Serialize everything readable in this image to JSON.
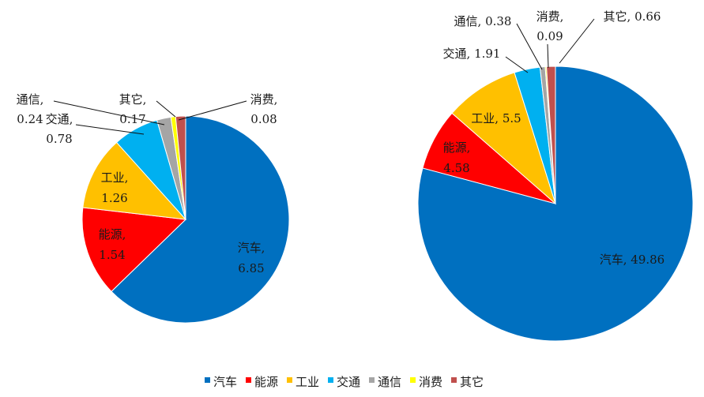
{
  "chart_data": [
    {
      "type": "pie",
      "categories": [
        "汽车",
        "能源",
        "工业",
        "交通",
        "通信",
        "消费",
        "其它"
      ],
      "values": [
        6.85,
        1.54,
        1.26,
        0.78,
        0.24,
        0.08,
        0.17
      ],
      "labels": [
        {
          "name": "汽车,",
          "value": "6.85"
        },
        {
          "name": "能源,",
          "value": "1.54"
        },
        {
          "name": "工业,",
          "value": "1.26"
        },
        {
          "name": "交通,",
          "value": "0.78"
        },
        {
          "name": "通信,",
          "value": "0.24"
        },
        {
          "name": "消费,",
          "value": "0.08"
        },
        {
          "name": "其它,",
          "value": "0.17"
        }
      ]
    },
    {
      "type": "pie",
      "categories": [
        "汽车",
        "能源",
        "工业",
        "交通",
        "通信",
        "消费",
        "其它"
      ],
      "values": [
        49.86,
        4.58,
        5.5,
        1.91,
        0.38,
        0.09,
        0.66
      ],
      "labels": [
        {
          "name": "汽车,",
          "value": "49.86"
        },
        {
          "name": "能源,",
          "value": "4.58"
        },
        {
          "name": "工业,",
          "value": "5.5"
        },
        {
          "name": "交通,",
          "value": "1.91"
        },
        {
          "name": "通信,",
          "value": "0.38"
        },
        {
          "name": "消费,",
          "value": "0.09"
        },
        {
          "name": "其它,",
          "value": "0.66"
        }
      ]
    }
  ],
  "legend": {
    "placement": "bottom",
    "items": [
      {
        "label": "汽车",
        "color": "#0070C0"
      },
      {
        "label": "能源",
        "color": "#FF0000"
      },
      {
        "label": "工业",
        "color": "#FFC000"
      },
      {
        "label": "交通",
        "color": "#00B0F0"
      },
      {
        "label": "通信",
        "color": "#A5A5A5"
      },
      {
        "label": "消费",
        "color": "#FFFF00"
      },
      {
        "label": "其它",
        "color": "#C0504D"
      }
    ]
  }
}
